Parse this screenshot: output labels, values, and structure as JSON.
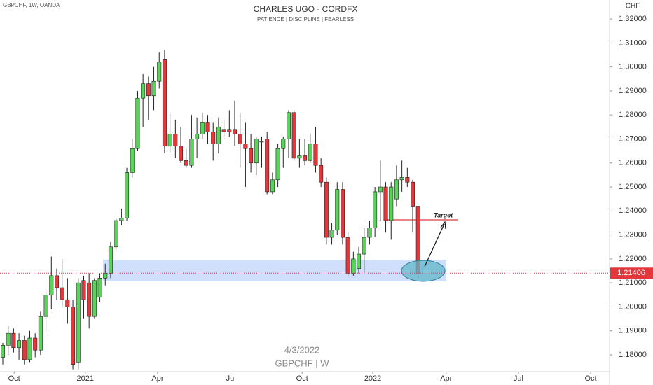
{
  "chart_data": {
    "type": "candlestick",
    "title": "CHARLES UGO - CORDFX",
    "subtitle": "PATIENCE   |   DISCIPLINE   |   FEARLESS",
    "symbol_info": "GBPCHF, 1W, OANDA",
    "watermark_date": "4/3/2022",
    "watermark_symbol": "GBPCHF  |  W",
    "currency": "CHF",
    "annotation": "Target",
    "last_price": 1.21406,
    "up_color": "#5bd35b",
    "down_color": "#e2383b",
    "open": [
      1.179,
      1.184,
      1.189,
      1.183,
      1.186,
      1.178,
      1.187,
      1.182,
      1.196,
      1.205,
      1.213,
      1.208,
      1.203,
      1.2,
      1.177,
      1.211,
      1.21,
      1.196,
      1.204,
      1.212,
      1.214,
      1.225,
      1.236,
      1.237,
      1.256,
      1.266,
      1.287,
      1.293,
      1.288,
      1.294,
      1.303,
      1.267,
      1.272,
      1.267,
      1.261,
      1.259,
      1.27,
      1.272,
      1.277,
      1.273,
      1.268,
      1.274,
      1.274,
      1.274,
      1.272,
      1.268,
      1.266,
      1.26,
      1.269,
      1.27,
      1.248,
      1.253,
      1.266,
      1.27,
      1.281,
      1.262,
      1.263,
      1.261,
      1.268,
      1.259,
      1.252,
      1.229,
      1.232,
      1.249,
      1.229,
      1.214,
      1.216,
      1.222,
      1.229,
      1.233,
      1.248,
      1.25,
      1.236,
      1.245,
      1.253,
      1.254,
      1.252,
      1.242
    ],
    "high": [
      1.185,
      1.192,
      1.191,
      1.189,
      1.188,
      1.19,
      1.189,
      1.198,
      1.207,
      1.221,
      1.216,
      1.22,
      1.212,
      1.203,
      1.212,
      1.213,
      1.214,
      1.212,
      1.214,
      1.218,
      1.227,
      1.237,
      1.241,
      1.258,
      1.27,
      1.29,
      1.297,
      1.296,
      1.3,
      1.306,
      1.307,
      1.281,
      1.278,
      1.275,
      1.266,
      1.28,
      1.279,
      1.281,
      1.28,
      1.277,
      1.279,
      1.278,
      1.282,
      1.286,
      1.281,
      1.277,
      1.272,
      1.271,
      1.271,
      1.273,
      1.256,
      1.268,
      1.271,
      1.282,
      1.282,
      1.27,
      1.27,
      1.272,
      1.275,
      1.262,
      1.254,
      1.235,
      1.252,
      1.252,
      1.231,
      1.223,
      1.225,
      1.233,
      1.236,
      1.25,
      1.261,
      1.252,
      1.252,
      1.259,
      1.261,
      1.258,
      1.253,
      1.242
    ],
    "low": [
      1.176,
      1.18,
      1.181,
      1.178,
      1.176,
      1.177,
      1.179,
      1.18,
      1.19,
      1.199,
      1.203,
      1.2,
      1.193,
      1.174,
      1.174,
      1.195,
      1.191,
      1.195,
      1.202,
      1.209,
      1.212,
      1.224,
      1.234,
      1.236,
      1.254,
      1.265,
      1.275,
      1.278,
      1.282,
      1.291,
      1.264,
      1.264,
      1.262,
      1.26,
      1.258,
      1.258,
      1.262,
      1.27,
      1.268,
      1.261,
      1.264,
      1.27,
      1.271,
      1.267,
      1.258,
      1.25,
      1.256,
      1.255,
      1.258,
      1.247,
      1.247,
      1.25,
      1.258,
      1.262,
      1.261,
      1.258,
      1.259,
      1.26,
      1.256,
      1.25,
      1.226,
      1.226,
      1.23,
      1.226,
      1.213,
      1.213,
      1.214,
      1.214,
      1.226,
      1.229,
      1.236,
      1.231,
      1.228,
      1.242,
      1.248,
      1.25,
      1.231,
      1.212
    ],
    "close": [
      1.184,
      1.189,
      1.183,
      1.186,
      1.178,
      1.187,
      1.182,
      1.196,
      1.205,
      1.213,
      1.208,
      1.203,
      1.2,
      1.176,
      1.21,
      1.203,
      1.196,
      1.211,
      1.212,
      1.214,
      1.225,
      1.236,
      1.237,
      1.256,
      1.266,
      1.287,
      1.293,
      1.288,
      1.294,
      1.302,
      1.267,
      1.272,
      1.267,
      1.261,
      1.259,
      1.27,
      1.272,
      1.277,
      1.273,
      1.268,
      1.275,
      1.273,
      1.273,
      1.272,
      1.268,
      1.266,
      1.26,
      1.27,
      1.269,
      1.248,
      1.253,
      1.266,
      1.27,
      1.281,
      1.262,
      1.263,
      1.261,
      1.268,
      1.259,
      1.252,
      1.229,
      1.232,
      1.249,
      1.229,
      1.214,
      1.22,
      1.222,
      1.229,
      1.233,
      1.248,
      1.25,
      1.236,
      1.25,
      1.253,
      1.254,
      1.252,
      1.242,
      1.214
    ],
    "xlim": [
      -0.52,
      112.5
    ],
    "xticks": [
      {
        "value": 2.1,
        "label": "Oct"
      },
      {
        "value": 15.3,
        "label": "2021"
      },
      {
        "value": 28.7,
        "label": "Apr"
      },
      {
        "value": 42.3,
        "label": "Jul"
      },
      {
        "value": 55.5,
        "label": "Oct"
      },
      {
        "value": 68.6,
        "label": "2022"
      },
      {
        "value": 82.2,
        "label": "Apr"
      },
      {
        "value": 95.6,
        "label": "Jul"
      },
      {
        "value": 109,
        "label": "Oct"
      }
    ],
    "ylim": [
      1.1733,
      1.3279
    ],
    "yticks": [
      {
        "value": 1.18,
        "label": "1.18000"
      },
      {
        "value": 1.19,
        "label": "1.19000"
      },
      {
        "value": 1.2,
        "label": "1.20000"
      },
      {
        "value": 1.21,
        "label": "1.21000"
      },
      {
        "value": 1.22,
        "label": "1.22000"
      },
      {
        "value": 1.23,
        "label": "1.23000"
      },
      {
        "value": 1.24,
        "label": "1.24000"
      },
      {
        "value": 1.25,
        "label": "1.25000"
      },
      {
        "value": 1.26,
        "label": "1.26000"
      },
      {
        "value": 1.27,
        "label": "1.27000"
      },
      {
        "value": 1.28,
        "label": "1.28000"
      },
      {
        "value": 1.29,
        "label": "1.29000"
      },
      {
        "value": 1.3,
        "label": "1.30000"
      },
      {
        "value": 1.31,
        "label": "1.31000"
      },
      {
        "value": 1.32,
        "label": "1.32000"
      }
    ]
  }
}
